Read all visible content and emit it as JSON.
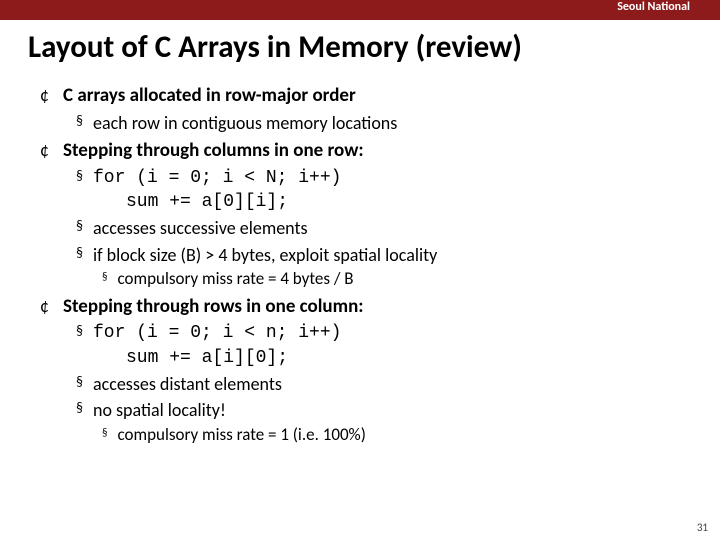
{
  "colors": {
    "topbar_bg": "#8d1b1b",
    "text": "#000000",
    "bg": "#ffffff"
  },
  "header": {
    "institution": "Seoul National"
  },
  "title": "Layout of C Arrays in Memory (review)",
  "sections": [
    {
      "heading": "C arrays allocated in row-major order",
      "subs": [
        {
          "text": "each row in contiguous memory locations"
        }
      ]
    },
    {
      "heading": "Stepping through columns in one row:",
      "subs": [
        {
          "code": "for (i = 0; i < N; i++)",
          "code2": "sum += a[0][i];"
        },
        {
          "text": "accesses successive elements"
        },
        {
          "text": "if block size (B) > 4 bytes, exploit spatial locality",
          "subsubs": [
            {
              "text": "compulsory miss rate = 4 bytes / B"
            }
          ]
        }
      ]
    },
    {
      "heading": "Stepping through rows in one column:",
      "subs": [
        {
          "code": "for (i = 0; i < n; i++)",
          "code2": "sum += a[i][0];"
        },
        {
          "text": "accesses distant elements"
        },
        {
          "text": "no spatial locality!",
          "subsubs": [
            {
              "text": "compulsory miss rate = 1 (i.e. 100%)"
            }
          ]
        }
      ]
    }
  ],
  "page_number": "31"
}
